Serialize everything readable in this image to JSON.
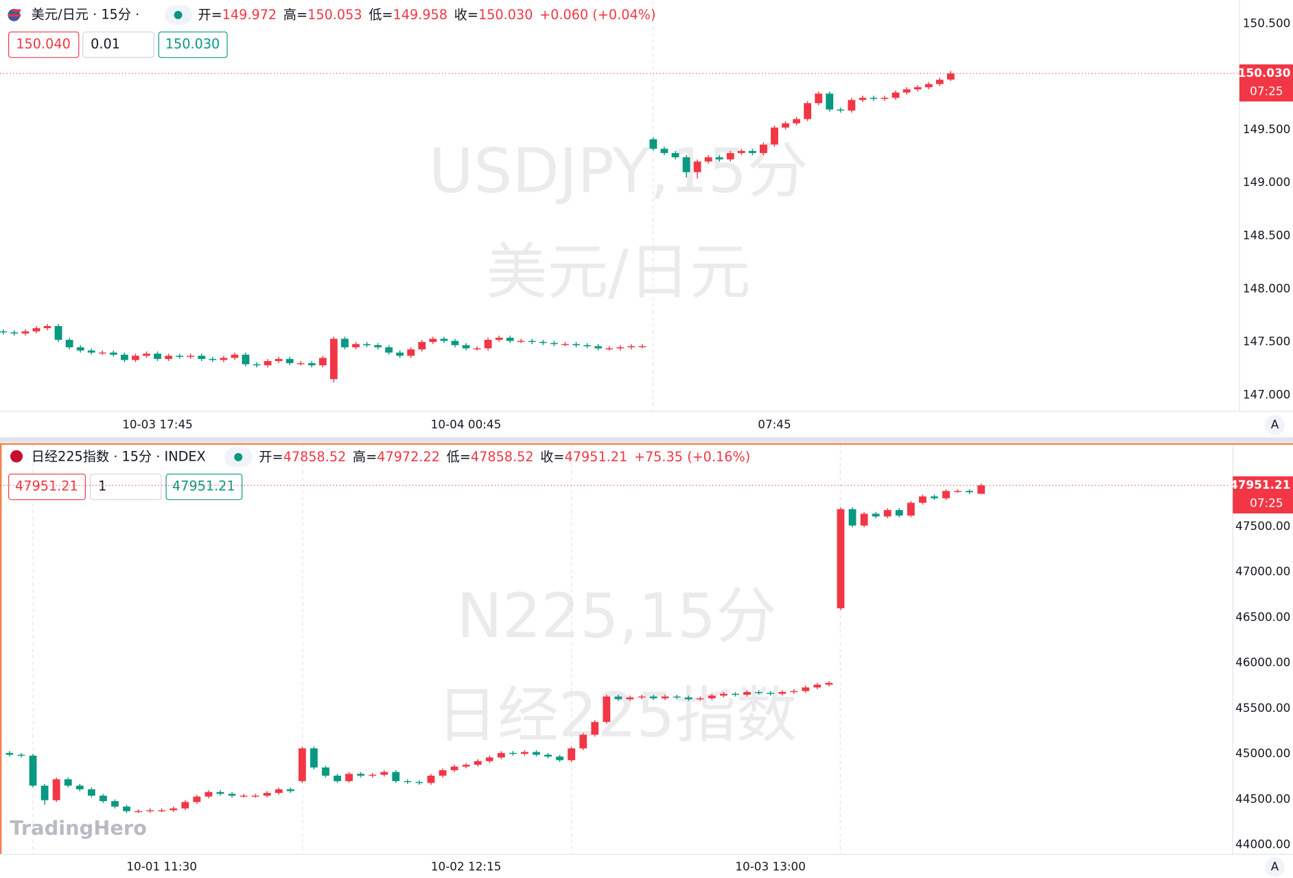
{
  "chart_data": [
    {
      "type": "candlestick",
      "symbol": "美元/日元 · 15分 ·",
      "ohlc_labels": [
        "开=",
        "高=",
        "低=",
        "收="
      ],
      "ohlc_values": [
        "149.972",
        "150.053",
        "149.958",
        "150.030"
      ],
      "change": "+0.060 (+0.04%)",
      "order_buttons": [
        "150.040",
        "0.01",
        "150.030"
      ],
      "watermark": [
        "USDJPY,15分",
        "美元/日元"
      ],
      "price_tag": "150.030",
      "countdown": "07:25",
      "autoscale_button": "A",
      "up_color": "#f23645",
      "down_color": "#089981",
      "categories": [
        null,
        null,
        null,
        null,
        null,
        null,
        null,
        null,
        null,
        null,
        null,
        null,
        null,
        null,
        "10-03 17:45",
        null,
        null,
        null,
        null,
        null,
        null,
        null,
        null,
        null,
        null,
        null,
        null,
        null,
        null,
        null,
        null,
        null,
        null,
        null,
        null,
        null,
        null,
        null,
        null,
        null,
        null,
        null,
        "10-04 00:45",
        null,
        null,
        null,
        null,
        null,
        null,
        null,
        null,
        null,
        null,
        null,
        null,
        null,
        null,
        null,
        null,
        null,
        null,
        null,
        null,
        null,
        null,
        null,
        null,
        null,
        null,
        null,
        "07:45",
        null,
        null,
        null,
        null,
        null,
        null,
        null,
        null,
        null,
        null,
        null,
        null,
        null,
        null,
        null,
        null
      ],
      "open": [
        147.6,
        147.59,
        147.58,
        147.6,
        147.63,
        147.65,
        147.52,
        147.45,
        147.42,
        147.4,
        147.4,
        147.38,
        147.33,
        147.37,
        147.39,
        147.34,
        147.37,
        147.36,
        147.37,
        147.34,
        147.33,
        147.35,
        147.38,
        147.29,
        147.28,
        147.32,
        147.34,
        147.3,
        147.3,
        147.28,
        147.15,
        147.53,
        147.45,
        147.48,
        147.47,
        147.45,
        147.4,
        147.37,
        147.43,
        147.5,
        147.53,
        147.51,
        147.47,
        147.44,
        147.44,
        147.52,
        147.54,
        147.51,
        147.51,
        147.5,
        147.49,
        147.48,
        147.48,
        147.47,
        147.46,
        147.44,
        147.44,
        147.45,
        147.46,
        149.41,
        149.32,
        149.28,
        149.24,
        149.1,
        149.2,
        149.24,
        149.22,
        149.28,
        149.3,
        149.28,
        149.36,
        149.52,
        149.56,
        149.6,
        149.75,
        149.84,
        149.69,
        149.68,
        149.78,
        149.8,
        149.79,
        149.8,
        149.85,
        149.88,
        149.9,
        149.93,
        149.972
      ],
      "high": [
        147.62,
        147.61,
        147.62,
        147.65,
        147.67,
        147.67,
        147.54,
        147.47,
        147.44,
        147.42,
        147.42,
        147.4,
        147.39,
        147.41,
        147.41,
        147.39,
        147.39,
        147.39,
        147.39,
        147.36,
        147.37,
        147.4,
        147.4,
        147.31,
        147.34,
        147.36,
        147.36,
        147.32,
        147.32,
        147.37,
        147.55,
        147.55,
        147.5,
        147.5,
        147.49,
        147.47,
        147.42,
        147.45,
        147.52,
        147.55,
        147.55,
        147.53,
        147.49,
        147.46,
        147.54,
        147.56,
        147.56,
        147.53,
        147.53,
        147.52,
        147.51,
        147.5,
        147.5,
        147.49,
        147.48,
        147.46,
        147.47,
        147.48,
        147.48,
        149.43,
        149.34,
        149.3,
        149.26,
        149.22,
        149.26,
        149.26,
        149.3,
        149.32,
        149.32,
        149.38,
        149.54,
        149.58,
        149.62,
        149.77,
        149.86,
        149.86,
        149.71,
        149.8,
        149.82,
        149.82,
        149.82,
        149.87,
        149.9,
        149.92,
        149.95,
        149.99,
        150.053
      ],
      "low": [
        147.57,
        147.56,
        147.56,
        147.58,
        147.61,
        147.5,
        147.43,
        147.4,
        147.38,
        147.38,
        147.36,
        147.31,
        147.31,
        147.35,
        147.32,
        147.32,
        147.34,
        147.34,
        147.32,
        147.31,
        147.31,
        147.33,
        147.27,
        147.26,
        147.26,
        147.3,
        147.28,
        147.28,
        147.26,
        147.26,
        147.12,
        147.43,
        147.43,
        147.45,
        147.43,
        147.38,
        147.35,
        147.35,
        147.41,
        147.48,
        147.49,
        147.45,
        147.42,
        147.42,
        147.42,
        147.5,
        147.49,
        147.49,
        147.48,
        147.47,
        147.46,
        147.46,
        147.45,
        147.44,
        147.42,
        147.42,
        147.42,
        147.43,
        147.44,
        149.3,
        149.26,
        149.22,
        149.05,
        149.04,
        149.18,
        149.2,
        149.2,
        149.26,
        149.26,
        149.26,
        149.34,
        149.5,
        149.54,
        149.58,
        149.73,
        149.67,
        149.66,
        149.66,
        149.76,
        149.77,
        149.77,
        149.78,
        149.83,
        149.86,
        149.88,
        149.91,
        149.958
      ],
      "close": [
        147.59,
        147.58,
        147.6,
        147.63,
        147.65,
        147.52,
        147.45,
        147.42,
        147.4,
        147.4,
        147.38,
        147.33,
        147.37,
        147.39,
        147.34,
        147.37,
        147.36,
        147.37,
        147.34,
        147.33,
        147.35,
        147.38,
        147.29,
        147.28,
        147.32,
        147.34,
        147.3,
        147.3,
        147.28,
        147.35,
        147.53,
        147.45,
        147.48,
        147.47,
        147.45,
        147.4,
        147.37,
        147.43,
        147.5,
        147.53,
        147.51,
        147.47,
        147.44,
        147.44,
        147.52,
        147.54,
        147.51,
        147.51,
        147.5,
        147.49,
        147.48,
        147.48,
        147.47,
        147.46,
        147.44,
        147.44,
        147.45,
        147.46,
        147.46,
        149.32,
        149.28,
        149.24,
        149.1,
        149.2,
        149.24,
        149.22,
        149.28,
        149.3,
        149.28,
        149.36,
        149.52,
        149.56,
        149.6,
        149.75,
        149.84,
        149.69,
        149.68,
        149.78,
        149.8,
        149.79,
        149.8,
        149.85,
        149.88,
        149.9,
        149.93,
        149.97,
        150.03
      ],
      "ylim": [
        146.85,
        150.72
      ],
      "yticks": [
        {
          "value": 147,
          "label": "147.000"
        },
        {
          "value": 147.5,
          "label": "147.500"
        },
        {
          "value": 148,
          "label": "148.000"
        },
        {
          "value": 148.5,
          "label": "148.500"
        },
        {
          "value": 149,
          "label": "149.000"
        },
        {
          "value": 149.5,
          "label": "149.500"
        },
        {
          "value": 150.5,
          "label": "150.500"
        }
      ]
    },
    {
      "type": "candlestick",
      "symbol": "日经225指数 · 15分 · INDEX",
      "ohlc_labels": [
        "开=",
        "高=",
        "低=",
        "收="
      ],
      "ohlc_values": [
        "47858.52",
        "47972.22",
        "47858.52",
        "47951.21"
      ],
      "change": "+75.35 (+0.16%)",
      "order_buttons": [
        "47951.21",
        "1",
        "47951.21"
      ],
      "watermark": [
        "N225,15分",
        "日经225指数"
      ],
      "price_tag": "47951.21",
      "countdown": "07:25",
      "autoscale_button": "A",
      "up_color": "#f23645",
      "down_color": "#089981",
      "categories": [
        null,
        null,
        null,
        null,
        null,
        null,
        null,
        null,
        null,
        null,
        null,
        null,
        null,
        "10-01 11:30",
        null,
        null,
        null,
        null,
        null,
        null,
        null,
        null,
        null,
        null,
        null,
        null,
        null,
        null,
        null,
        null,
        null,
        null,
        null,
        null,
        null,
        null,
        null,
        null,
        null,
        "10-02 12:15",
        null,
        null,
        null,
        null,
        null,
        null,
        null,
        null,
        null,
        null,
        null,
        null,
        null,
        null,
        null,
        null,
        null,
        null,
        null,
        null,
        null,
        null,
        null,
        null,
        null,
        "10-03 13:00",
        null,
        null,
        null,
        null,
        null,
        null,
        null,
        null,
        null,
        null,
        null,
        null,
        null,
        null,
        null,
        null,
        null,
        null
      ],
      "open": [
        45010,
        44990,
        44980,
        44650,
        44490,
        44720,
        44650,
        44610,
        44540,
        44480,
        44420,
        44370,
        44370,
        44380,
        44380,
        44400,
        44470,
        44530,
        44580,
        44560,
        44540,
        44540,
        44540,
        44570,
        44610,
        44700,
        45060,
        44850,
        44760,
        44700,
        44780,
        44760,
        44770,
        44800,
        44700,
        44690,
        44680,
        44760,
        44820,
        44860,
        44880,
        44920,
        44960,
        45010,
        45000,
        45020,
        44990,
        44970,
        44930,
        45060,
        45210,
        45350,
        45630,
        45600,
        45620,
        45630,
        45610,
        45630,
        45620,
        45600,
        45610,
        45640,
        45660,
        45650,
        45680,
        45670,
        45660,
        45680,
        45690,
        45730,
        45760,
        46600,
        47690,
        47510,
        47640,
        47610,
        47680,
        47620,
        47760,
        47830,
        47810,
        47890,
        47890,
        47858.52
      ],
      "high": [
        45030,
        45010,
        45000,
        44670,
        44740,
        44740,
        44670,
        44630,
        44560,
        44500,
        44440,
        44390,
        44400,
        44400,
        44420,
        44490,
        44550,
        44600,
        44600,
        44580,
        44560,
        44560,
        44590,
        44630,
        44630,
        45080,
        45080,
        44870,
        44780,
        44800,
        44800,
        44790,
        44820,
        44820,
        44720,
        44710,
        44780,
        44840,
        44880,
        44900,
        44940,
        44980,
        45030,
        45030,
        45040,
        45040,
        45010,
        44990,
        45080,
        45230,
        45370,
        45650,
        45650,
        45640,
        45650,
        45650,
        45650,
        45650,
        45640,
        45630,
        45660,
        45680,
        45680,
        45700,
        45700,
        45690,
        45700,
        45710,
        45750,
        45780,
        45800,
        47710,
        47710,
        47660,
        47660,
        47700,
        47700,
        47780,
        47850,
        47850,
        47910,
        47910,
        47910,
        47972.22
      ],
      "low": [
        44970,
        44960,
        44630,
        44440,
        44470,
        44630,
        44590,
        44520,
        44460,
        44400,
        44350,
        44350,
        44350,
        44360,
        44360,
        44380,
        44450,
        44510,
        44540,
        44520,
        44520,
        44520,
        44520,
        44550,
        44570,
        44680,
        44830,
        44740,
        44680,
        44680,
        44740,
        44740,
        44750,
        44680,
        44670,
        44660,
        44660,
        44740,
        44800,
        44840,
        44860,
        44900,
        44940,
        44980,
        44980,
        44970,
        44950,
        44910,
        44910,
        45040,
        45190,
        45330,
        45580,
        45580,
        45600,
        45590,
        45590,
        45600,
        45580,
        45580,
        45590,
        45620,
        45630,
        45630,
        45650,
        45640,
        45640,
        45660,
        45670,
        45710,
        45740,
        46580,
        47490,
        47490,
        47590,
        47590,
        47600,
        47600,
        47740,
        47790,
        47790,
        47870,
        47856,
        47858.52
      ],
      "close": [
        44990,
        44980,
        44650,
        44490,
        44720,
        44650,
        44610,
        44540,
        44480,
        44420,
        44370,
        44370,
        44380,
        44380,
        44400,
        44470,
        44530,
        44580,
        44560,
        44540,
        44540,
        44540,
        44570,
        44610,
        44590,
        45060,
        44850,
        44760,
        44700,
        44780,
        44760,
        44770,
        44800,
        44700,
        44690,
        44680,
        44760,
        44820,
        44860,
        44880,
        44920,
        44960,
        45010,
        45000,
        45020,
        44990,
        44970,
        44930,
        45060,
        45210,
        45350,
        45630,
        45600,
        45620,
        45630,
        45610,
        45630,
        45620,
        45600,
        45610,
        45640,
        45660,
        45650,
        45680,
        45670,
        45660,
        45680,
        45690,
        45730,
        45760,
        45780,
        47690,
        47510,
        47640,
        47610,
        47680,
        47620,
        47760,
        47830,
        47810,
        47890,
        47890,
        47876,
        47951.21
      ],
      "ylim": [
        43900,
        48407
      ],
      "yticks": [
        {
          "value": 44000,
          "label": "44000.00"
        },
        {
          "value": 44500,
          "label": "44500.00"
        },
        {
          "value": 45000,
          "label": "45000.00"
        },
        {
          "value": 45500,
          "label": "45500.00"
        },
        {
          "value": 46000,
          "label": "46000.00"
        },
        {
          "value": 46500,
          "label": "46500.00"
        },
        {
          "value": 47000,
          "label": "47000.00"
        },
        {
          "value": 47500,
          "label": "47500.00"
        }
      ]
    }
  ],
  "logo": "TradingHero"
}
